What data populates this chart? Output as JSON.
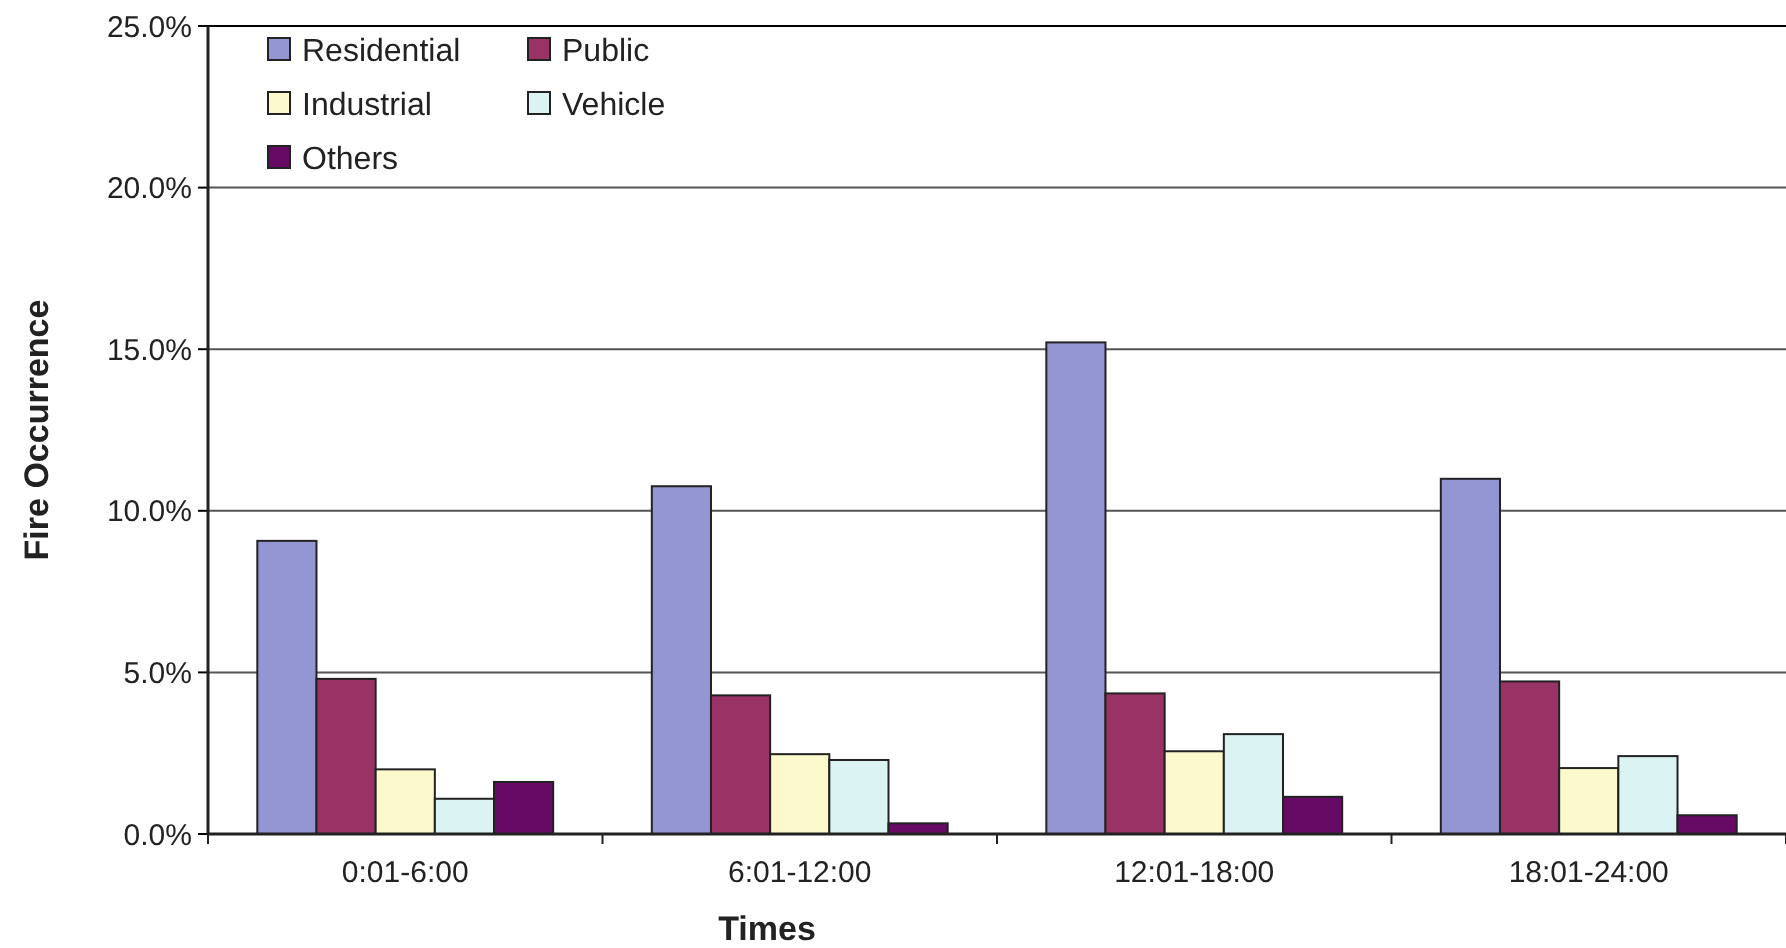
{
  "chart_data": {
    "type": "bar",
    "xlabel": "Times",
    "ylabel": "Fire Occurrence",
    "categories": [
      "0:01-6:00",
      "6:01-12:00",
      "12:01-18:00",
      "18:01-24:00"
    ],
    "series": [
      {
        "name": "Residential",
        "color": "#9496d4",
        "values": [
          9.07,
          10.76,
          15.21,
          10.99
        ]
      },
      {
        "name": "Public",
        "color": "#993366",
        "values": [
          4.8,
          4.29,
          4.35,
          4.72
        ]
      },
      {
        "name": "Industrial",
        "color": "#fcfacc",
        "values": [
          2.0,
          2.47,
          2.56,
          2.04
        ]
      },
      {
        "name": "Vehicle",
        "color": "#dbf3f3",
        "values": [
          1.09,
          2.29,
          3.09,
          2.41
        ]
      },
      {
        "name": "Others",
        "color": "#660a66",
        "values": [
          1.61,
          0.33,
          1.15,
          0.58
        ]
      }
    ],
    "ylim": [
      0,
      25
    ],
    "yticks": [
      {
        "value": 0,
        "label": "0.0%"
      },
      {
        "value": 5,
        "label": "5.0%"
      },
      {
        "value": 10,
        "label": "10.0%"
      },
      {
        "value": 15,
        "label": "15.0%"
      },
      {
        "value": 20,
        "label": "20.0%"
      },
      {
        "value": 25,
        "label": "25.0%"
      }
    ],
    "grid": "y",
    "legend": "top left"
  }
}
